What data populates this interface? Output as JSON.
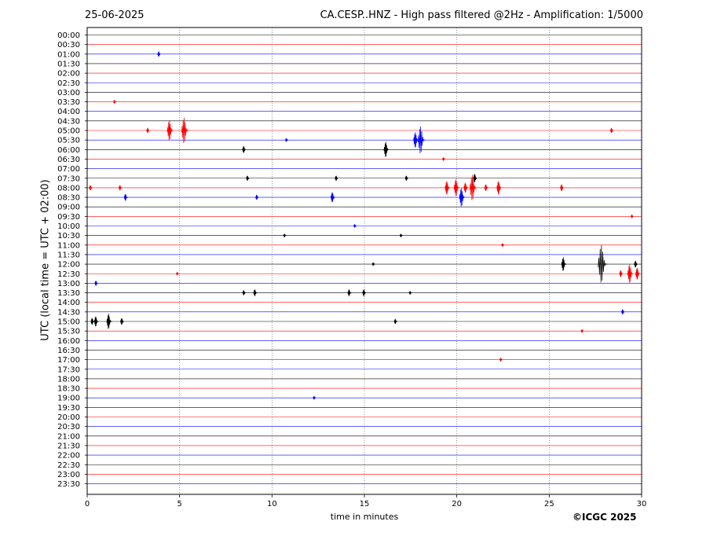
{
  "header": {
    "date": "25-06-2025",
    "title": "CA.CESP..HNZ - High pass filtered @2Hz - Amplification: 1/5000"
  },
  "footer": {
    "copyright": "©ICGC 2025"
  },
  "chart_data": {
    "type": "line",
    "title": "CA.CESP..HNZ - High pass filtered @2Hz - Amplification: 1/5000",
    "xlabel": "time in minutes",
    "ylabel": "UTC (local time = UTC + 02:00)",
    "xlim": [
      0,
      30
    ],
    "x_ticks": [
      0,
      5,
      10,
      15,
      20,
      25,
      30
    ],
    "x_gridlines": [
      5,
      10,
      15,
      20,
      25
    ],
    "y_ticks": [
      "00:00",
      "00:30",
      "01:00",
      "01:30",
      "02:00",
      "02:30",
      "03:00",
      "03:30",
      "04:00",
      "04:30",
      "05:00",
      "05:30",
      "06:00",
      "06:30",
      "07:00",
      "07:30",
      "08:00",
      "08:30",
      "09:00",
      "09:30",
      "10:00",
      "10:30",
      "11:00",
      "11:30",
      "12:00",
      "12:30",
      "13:00",
      "13:30",
      "14:00",
      "14:30",
      "15:00",
      "15:30",
      "16:00",
      "16:30",
      "17:00",
      "17:30",
      "18:00",
      "18:30",
      "19:00",
      "19:30",
      "20:00",
      "20:30",
      "21:00",
      "21:30",
      "22:00",
      "22:30",
      "23:00",
      "23:30"
    ],
    "trace_colors": [
      "#000000",
      "#ff0000",
      "#0000ff"
    ],
    "grid": "vertical dotted at 5-minute intervals",
    "events": [
      {
        "trace": "01:00",
        "minute": 3.9,
        "amplitude": 0.3
      },
      {
        "trace": "03:30",
        "minute": 1.5,
        "amplitude": 0.2
      },
      {
        "trace": "05:00",
        "minute": 3.3,
        "amplitude": 0.3
      },
      {
        "trace": "05:00",
        "minute": 4.5,
        "amplitude": 1.2
      },
      {
        "trace": "05:00",
        "minute": 5.3,
        "amplitude": 1.5
      },
      {
        "trace": "05:00",
        "minute": 28.4,
        "amplitude": 0.3
      },
      {
        "trace": "05:30",
        "minute": 10.8,
        "amplitude": 0.2
      },
      {
        "trace": "05:30",
        "minute": 17.8,
        "amplitude": 0.9
      },
      {
        "trace": "05:30",
        "minute": 18.1,
        "amplitude": 1.6
      },
      {
        "trace": "06:00",
        "minute": 8.5,
        "amplitude": 0.4
      },
      {
        "trace": "06:00",
        "minute": 16.2,
        "amplitude": 0.9
      },
      {
        "trace": "06:30",
        "minute": 19.3,
        "amplitude": 0.2
      },
      {
        "trace": "07:30",
        "minute": 8.7,
        "amplitude": 0.3
      },
      {
        "trace": "07:30",
        "minute": 13.5,
        "amplitude": 0.3
      },
      {
        "trace": "07:30",
        "minute": 17.3,
        "amplitude": 0.3
      },
      {
        "trace": "07:30",
        "minute": 21.0,
        "amplitude": 0.5
      },
      {
        "trace": "08:00",
        "minute": 0.2,
        "amplitude": 0.3
      },
      {
        "trace": "08:00",
        "minute": 1.8,
        "amplitude": 0.3
      },
      {
        "trace": "08:00",
        "minute": 19.5,
        "amplitude": 0.8
      },
      {
        "trace": "08:00",
        "minute": 20.0,
        "amplitude": 1.0
      },
      {
        "trace": "08:00",
        "minute": 20.5,
        "amplitude": 0.6
      },
      {
        "trace": "08:00",
        "minute": 20.9,
        "amplitude": 1.5
      },
      {
        "trace": "08:00",
        "minute": 21.6,
        "amplitude": 0.4
      },
      {
        "trace": "08:00",
        "minute": 22.3,
        "amplitude": 0.8
      },
      {
        "trace": "08:00",
        "minute": 25.7,
        "amplitude": 0.4
      },
      {
        "trace": "08:30",
        "minute": 2.1,
        "amplitude": 0.4
      },
      {
        "trace": "08:30",
        "minute": 9.2,
        "amplitude": 0.3
      },
      {
        "trace": "08:30",
        "minute": 13.3,
        "amplitude": 0.6
      },
      {
        "trace": "08:30",
        "minute": 20.3,
        "amplitude": 1.1
      },
      {
        "trace": "09:30",
        "minute": 29.5,
        "amplitude": 0.2
      },
      {
        "trace": "10:00",
        "minute": 14.5,
        "amplitude": 0.2
      },
      {
        "trace": "10:30",
        "minute": 10.7,
        "amplitude": 0.2
      },
      {
        "trace": "10:30",
        "minute": 17.0,
        "amplitude": 0.2
      },
      {
        "trace": "11:00",
        "minute": 22.5,
        "amplitude": 0.2
      },
      {
        "trace": "12:00",
        "minute": 15.5,
        "amplitude": 0.2
      },
      {
        "trace": "12:00",
        "minute": 25.8,
        "amplitude": 0.8
      },
      {
        "trace": "12:00",
        "minute": 27.9,
        "amplitude": 2.2
      },
      {
        "trace": "12:00",
        "minute": 29.7,
        "amplitude": 0.4
      },
      {
        "trace": "12:30",
        "minute": 4.9,
        "amplitude": 0.2
      },
      {
        "trace": "12:30",
        "minute": 28.9,
        "amplitude": 0.4
      },
      {
        "trace": "12:30",
        "minute": 29.4,
        "amplitude": 1.1
      },
      {
        "trace": "12:30",
        "minute": 29.8,
        "amplitude": 0.7
      },
      {
        "trace": "13:00",
        "minute": 0.5,
        "amplitude": 0.3
      },
      {
        "trace": "13:30",
        "minute": 8.5,
        "amplitude": 0.3
      },
      {
        "trace": "13:30",
        "minute": 9.1,
        "amplitude": 0.4
      },
      {
        "trace": "13:30",
        "minute": 14.2,
        "amplitude": 0.4
      },
      {
        "trace": "13:30",
        "minute": 15.0,
        "amplitude": 0.4
      },
      {
        "trace": "13:30",
        "minute": 17.5,
        "amplitude": 0.2
      },
      {
        "trace": "14:30",
        "minute": 29.0,
        "amplitude": 0.3
      },
      {
        "trace": "15:00",
        "minute": 0.3,
        "amplitude": 0.4
      },
      {
        "trace": "15:00",
        "minute": 0.5,
        "amplitude": 0.6
      },
      {
        "trace": "15:00",
        "minute": 1.2,
        "amplitude": 0.9
      },
      {
        "trace": "15:00",
        "minute": 1.9,
        "amplitude": 0.4
      },
      {
        "trace": "15:00",
        "minute": 16.7,
        "amplitude": 0.3
      },
      {
        "trace": "15:30",
        "minute": 26.8,
        "amplitude": 0.2
      },
      {
        "trace": "17:00",
        "minute": 22.4,
        "amplitude": 0.2
      },
      {
        "trace": "19:00",
        "minute": 12.3,
        "amplitude": 0.2
      }
    ]
  }
}
